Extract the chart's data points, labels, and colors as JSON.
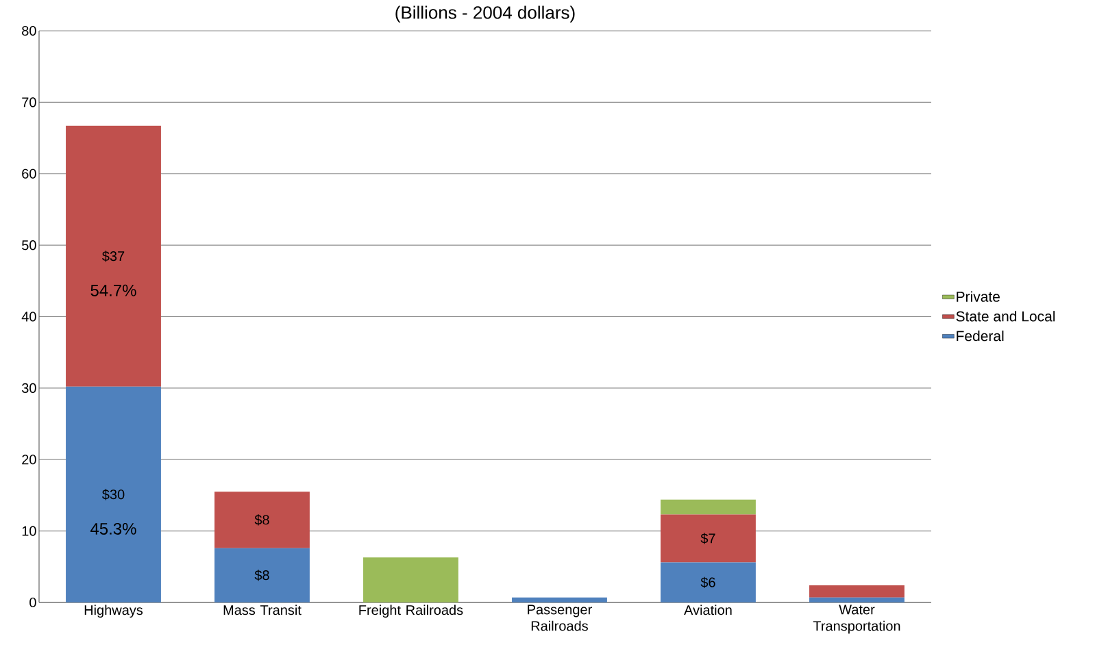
{
  "chart_data": {
    "type": "bar",
    "stacked": true,
    "title": "(Billions - 2004 dollars)",
    "categories": [
      "Highways",
      "Mass Transit",
      "Freight Railroads",
      "Passenger Railroads",
      "Aviation",
      "Water Transportation"
    ],
    "series": [
      {
        "name": "Federal",
        "color": "#4f81bd",
        "values": [
          30.2,
          7.6,
          null,
          0.7,
          5.6,
          0.7
        ],
        "value_labels": [
          "$30",
          "$8",
          null,
          null,
          "$6",
          null
        ]
      },
      {
        "name": "State and Local",
        "color": "#c0504d",
        "values": [
          36.5,
          7.9,
          null,
          null,
          6.7,
          1.7
        ],
        "value_labels": [
          "$37",
          "$8",
          null,
          null,
          "$7",
          null
        ]
      },
      {
        "name": "Private",
        "color": "#9bbb59",
        "values": [
          null,
          null,
          6.3,
          null,
          2.1,
          null
        ]
      }
    ],
    "annotations": [
      "45.3%",
      "54.7%"
    ],
    "ylim": [
      0,
      80
    ],
    "yticks": [
      0,
      10,
      20,
      30,
      40,
      50,
      60,
      70,
      80
    ],
    "grid": "y",
    "legend": "right"
  }
}
